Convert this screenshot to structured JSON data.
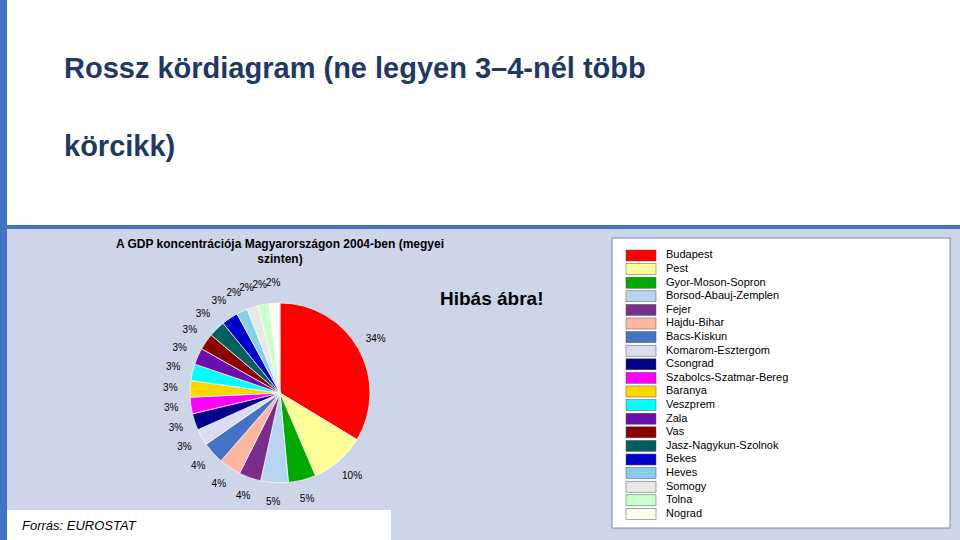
{
  "heading": [
    "Rossz kördiagram (ne legyen 3–4-nél több",
    "körcikk)"
  ],
  "chart_data": {
    "type": "pie",
    "title": "A GDP koncentrációja Magyarországon 2004-ben (megyei\nszinten)",
    "annotations": [
      "Hibás ábra!",
      "Forrás: EUROSTAT"
    ],
    "categories": [
      "Budapest",
      "Pest",
      "Gyor-Moson-Sopron",
      "Borsod-Abauj-Zemplen",
      "Fejer",
      "Hajdu-Bihar",
      "Bacs-Kiskun",
      "Komarom-Esztergom",
      "Csongrad",
      "Szabolcs-Szatmar-Bereg",
      "Baranya",
      "Veszprem",
      "Zala",
      "Vas",
      "Jasz-Nagykun-Szolnok",
      "Bekes",
      "Heves",
      "Somogy",
      "Tolna",
      "Nograd"
    ],
    "values": [
      34,
      10,
      5,
      5,
      4,
      4,
      4,
      3,
      3,
      3,
      3,
      3,
      3,
      3,
      3,
      3,
      2,
      2,
      2,
      2
    ],
    "value_labels": [
      "34%",
      "10%",
      "5%",
      "5%",
      "4%",
      "4%",
      "4%",
      "3%",
      "3%",
      "3%",
      "3%",
      "3%",
      "3%",
      "3%",
      "3%",
      "3%",
      "2%",
      "2%",
      "2%",
      "2%"
    ],
    "colors": [
      "#FF0000",
      "#FFFF99",
      "#00AA00",
      "#B8D4F0",
      "#7B2D8B",
      "#FFB6A0",
      "#4472C4",
      "#DCDCF0",
      "#00008B",
      "#FF00FF",
      "#FFD700",
      "#00FFFF",
      "#6A0DAD",
      "#8B0000",
      "#006060",
      "#0000CD",
      "#87CEEB",
      "#E8E8E8",
      "#CCFFCC",
      "#FFFFF0"
    ],
    "data_labels": true,
    "legend": "right"
  }
}
